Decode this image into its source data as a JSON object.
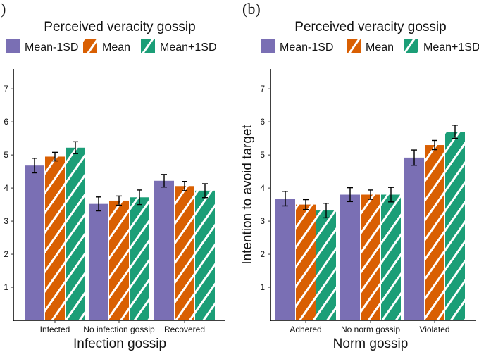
{
  "colors": {
    "mean_minus": "#7a6fb4",
    "mean": "#d95f02",
    "mean_plus": "#1b9e77",
    "hatch": "#ffffff",
    "error": "#000000"
  },
  "chart_data": [
    {
      "type": "bar",
      "panel_label": ")",
      "title": "",
      "legend_title": "Perceived veracity gossip",
      "legend_placement": "top",
      "xlabel": "Infection gossip",
      "ylabel": "",
      "ylim": [
        0,
        7.6
      ],
      "yticks": [
        1,
        2,
        3,
        4,
        5,
        6,
        7
      ],
      "grid": false,
      "categories": [
        "Infected",
        "No infection gossip",
        "Recovered"
      ],
      "series": [
        {
          "name": "Mean-1SD",
          "values": [
            4.68,
            3.52,
            4.22
          ],
          "errors": [
            0.22,
            0.21,
            0.19
          ]
        },
        {
          "name": "Mean",
          "values": [
            4.95,
            3.62,
            4.06
          ],
          "errors": [
            0.13,
            0.14,
            0.14
          ]
        },
        {
          "name": "Mean+1SD",
          "values": [
            5.22,
            3.72,
            3.92
          ],
          "errors": [
            0.18,
            0.22,
            0.21
          ]
        }
      ]
    },
    {
      "type": "bar",
      "panel_label": "(b)",
      "title": "",
      "legend_title": "Perceived veracity gossip",
      "legend_placement": "top",
      "xlabel": "Norm gossip",
      "ylabel": "Intention to avoid target",
      "ylim": [
        0,
        7.6
      ],
      "yticks": [
        1,
        2,
        3,
        4,
        5,
        6,
        7
      ],
      "grid": false,
      "categories": [
        "Adhered",
        "No norm gossip",
        "Violated"
      ],
      "series": [
        {
          "name": "Mean-1SD",
          "values": [
            3.68,
            3.8,
            4.92
          ],
          "errors": [
            0.22,
            0.21,
            0.23
          ]
        },
        {
          "name": "Mean",
          "values": [
            3.5,
            3.8,
            5.3
          ],
          "errors": [
            0.15,
            0.14,
            0.14
          ]
        },
        {
          "name": "Mean+1SD",
          "values": [
            3.32,
            3.8,
            5.7
          ],
          "errors": [
            0.22,
            0.22,
            0.2
          ]
        }
      ]
    }
  ]
}
